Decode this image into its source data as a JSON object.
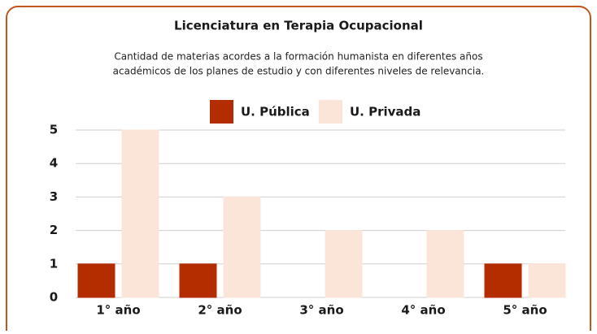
{
  "chart_data": {
    "type": "bar",
    "title": "Licenciatura en Terapia Ocupacional",
    "subtitle": [
      "Cantidad de materias acordes a la formación humanista en diferentes años",
      "académicos de los planes de estudio y con diferentes niveles de relevancia."
    ],
    "categories": [
      "1° año",
      "2° año",
      "3° año",
      "4° año",
      "5° año"
    ],
    "series": [
      {
        "name": "U. Pública",
        "color": "#b32d00",
        "values": [
          1,
          1,
          0,
          0,
          1
        ]
      },
      {
        "name": "U. Privada",
        "color": "#fbe4d8",
        "values": [
          5,
          3,
          2,
          2,
          1
        ]
      }
    ],
    "ylim": [
      0,
      5
    ],
    "yticks": [
      0,
      1,
      2,
      3,
      4,
      5
    ],
    "grid": true,
    "legend": "top"
  }
}
